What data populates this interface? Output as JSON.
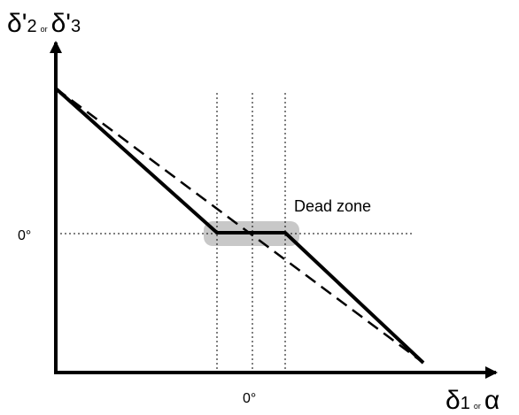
{
  "y_axis_label": {
    "symbol_1": "δ'",
    "index_1": "2",
    "joiner": "or",
    "symbol_2": "δ'",
    "index_2": "3"
  },
  "x_axis_label": {
    "symbol_1": "δ",
    "index_1": "1",
    "joiner": "or",
    "symbol_2": "α"
  },
  "y_zero_label": "0°",
  "x_zero_label": "0°",
  "annotation": "Dead zone"
}
